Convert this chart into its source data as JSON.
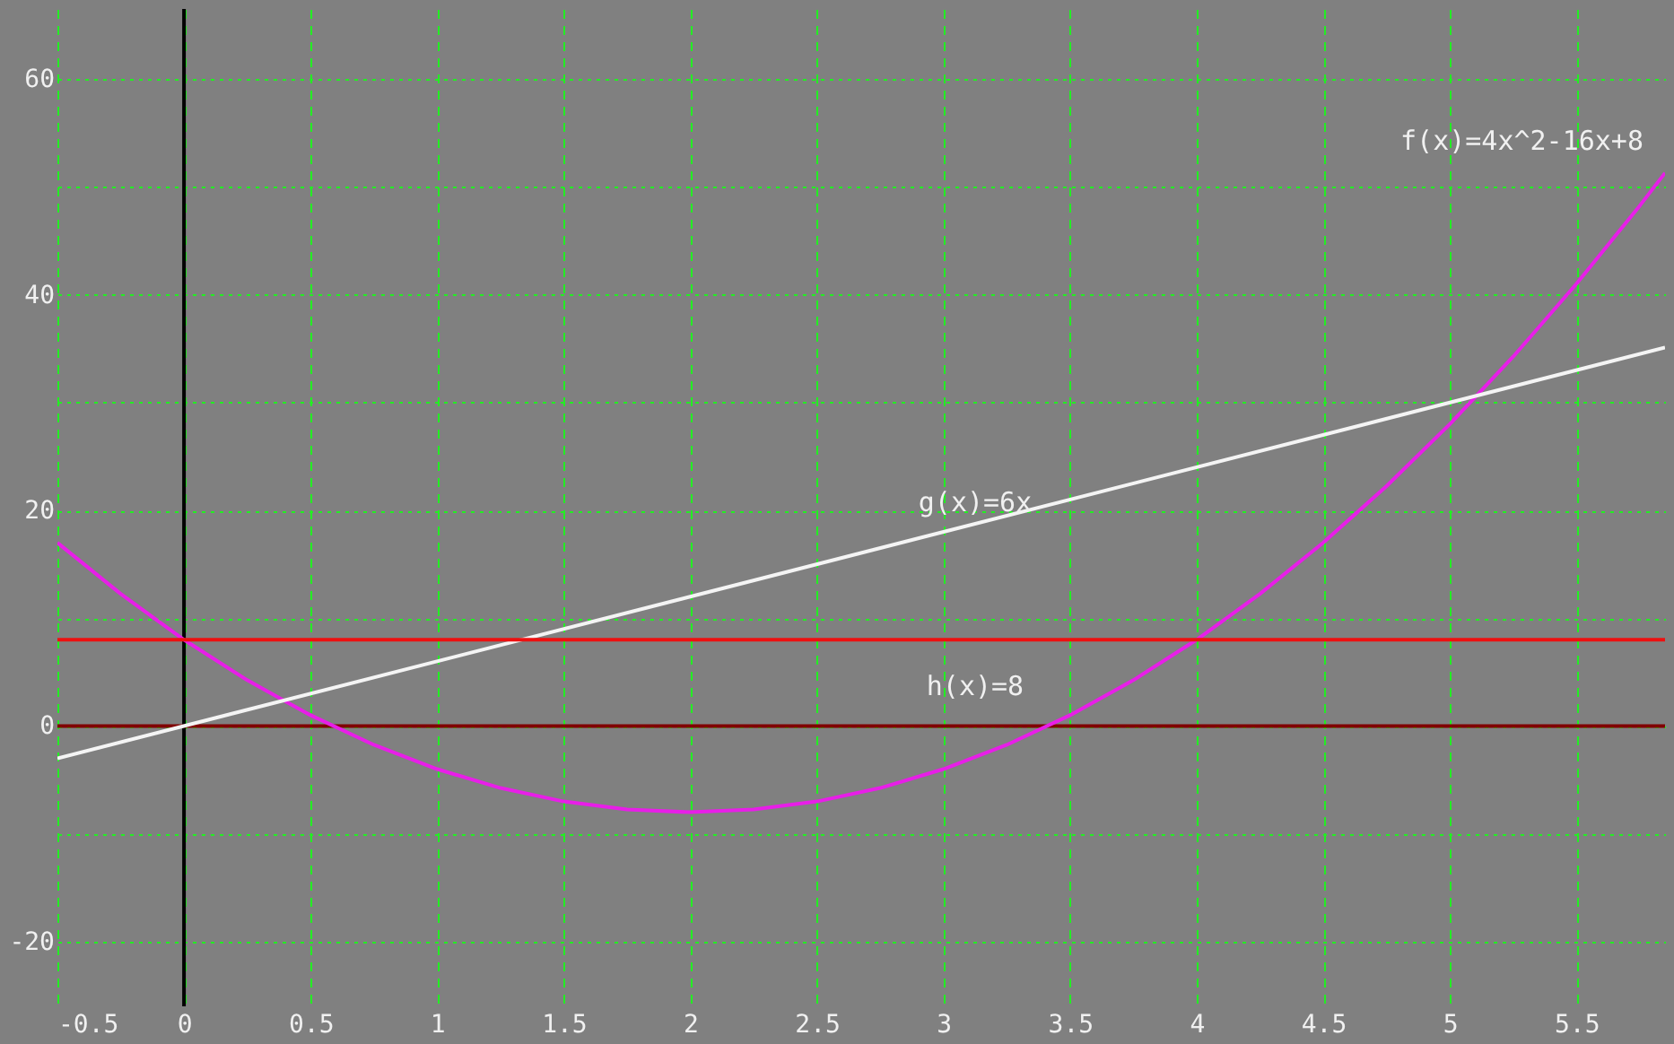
{
  "chart_data": {
    "type": "line",
    "series": [
      {
        "name": "f(x)=4x^2-16x+8",
        "color": "#e81ee8",
        "x": [
          -0.5,
          -0.25,
          0,
          0.25,
          0.5,
          0.75,
          1,
          1.25,
          1.5,
          1.75,
          2,
          2.25,
          2.5,
          2.75,
          3,
          3.25,
          3.5,
          3.75,
          4,
          4.25,
          4.5,
          4.75,
          5,
          5.25,
          5.5,
          5.75,
          5.85
        ],
        "values": [
          17,
          12.25,
          8,
          4.25,
          1,
          -1.75,
          -4,
          -5.75,
          -7,
          -7.75,
          -8,
          -7.75,
          -7,
          -5.75,
          -4,
          -1.75,
          1,
          4.25,
          8,
          12.25,
          17,
          22.25,
          28,
          34.25,
          41,
          48.25,
          51.29
        ]
      },
      {
        "name": "g(x)=6x",
        "color": "#f4f4f4",
        "x": [
          -0.5,
          5.85
        ],
        "values": [
          -3,
          35.1
        ]
      },
      {
        "name": "h(x)=8",
        "color": "#ee1010",
        "x": [
          -0.5,
          5.85
        ],
        "values": [
          8,
          8
        ]
      }
    ],
    "xlim": [
      -0.5,
      5.85
    ],
    "xticks": [
      -0.5,
      0,
      0.5,
      1,
      1.5,
      2,
      2.5,
      3,
      3.5,
      4,
      4.5,
      5,
      5.5
    ],
    "ylim": [
      -26,
      66.5
    ],
    "yticks": [
      -20,
      {
        "value": -10,
        "label": null
      },
      0,
      {
        "value": 10,
        "label": null
      },
      20,
      {
        "value": 30,
        "label": null
      },
      40,
      {
        "value": 50,
        "label": null
      },
      60
    ],
    "ref_lines": [
      {
        "axis": "y",
        "value": 0,
        "label": null,
        "color": "#800000"
      },
      {
        "axis": "x",
        "value": 0,
        "label": null,
        "color": "#000000"
      }
    ],
    "grid": true,
    "marker": "none",
    "line_style": "solid"
  }
}
